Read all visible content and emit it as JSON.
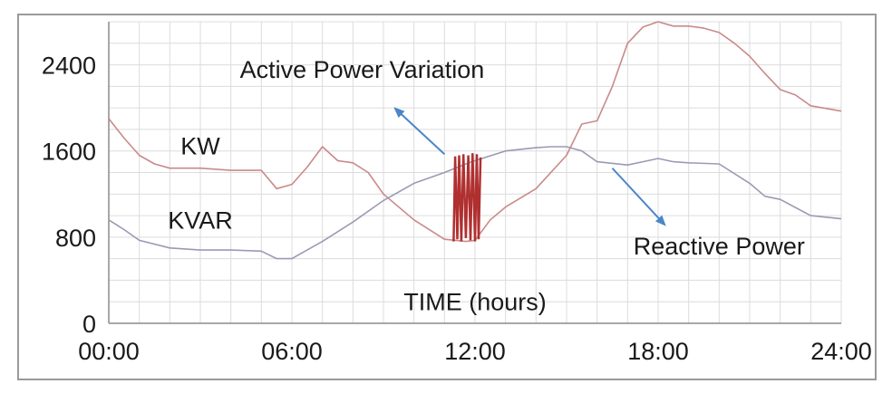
{
  "chart_data": {
    "type": "line",
    "xlabel": "TIME (hours)",
    "ylabel": "",
    "xlim": [
      0,
      24
    ],
    "ylim": [
      0,
      2800
    ],
    "grid": true,
    "x_ticks": [
      "00:00",
      "06:00",
      "12:00",
      "18:00",
      "24:00"
    ],
    "y_ticks": [
      "0",
      "800",
      "1600",
      "2400"
    ],
    "series": [
      {
        "name": "KW",
        "color": "#c98a8a",
        "x": [
          0,
          0.5,
          1,
          1.5,
          2,
          3,
          4,
          5,
          5.5,
          6,
          6.5,
          7,
          7.5,
          8,
          8.5,
          9,
          10,
          11,
          11.7,
          12,
          12.5,
          13,
          14,
          15,
          15.5,
          16,
          16.5,
          17,
          17.5,
          18,
          18.5,
          19,
          19.5,
          20,
          20.5,
          21,
          21.5,
          22,
          22.5,
          23,
          24
        ],
        "y": [
          1900,
          1720,
          1560,
          1480,
          1440,
          1440,
          1420,
          1420,
          1250,
          1290,
          1450,
          1640,
          1510,
          1490,
          1400,
          1200,
          960,
          780,
          760,
          770,
          960,
          1080,
          1250,
          1560,
          1850,
          1880,
          2200,
          2600,
          2750,
          2800,
          2760,
          2760,
          2740,
          2700,
          2600,
          2480,
          2320,
          2170,
          2120,
          2020,
          1970
        ]
      },
      {
        "name": "KVAR",
        "color": "#9a9ab5",
        "x": [
          0,
          0.5,
          1,
          2,
          3,
          4,
          5,
          5.5,
          6,
          6.5,
          7,
          8,
          9,
          10,
          11,
          11.7,
          12,
          13,
          14,
          14.5,
          15,
          15.5,
          16,
          17,
          17.5,
          18,
          18.5,
          19,
          20,
          21,
          21.5,
          22,
          23,
          24
        ],
        "y": [
          960,
          870,
          770,
          700,
          680,
          680,
          670,
          600,
          600,
          680,
          760,
          940,
          1140,
          1300,
          1400,
          1480,
          1510,
          1600,
          1630,
          1640,
          1640,
          1600,
          1500,
          1470,
          1500,
          1530,
          1500,
          1490,
          1480,
          1300,
          1180,
          1150,
          1000,
          970
        ]
      }
    ],
    "overlay": {
      "color": "#b03030",
      "x": [
        11.3,
        11.35,
        11.42,
        11.48,
        11.55,
        11.62,
        11.7,
        11.78,
        11.85,
        11.92,
        12.0,
        12.06,
        12.12,
        12.18
      ],
      "y": [
        760,
        1550,
        780,
        1560,
        760,
        1570,
        790,
        1560,
        770,
        1580,
        760,
        1570,
        780,
        1540
      ]
    },
    "annotations": [
      {
        "text": "Active Power Variation",
        "x": 8.3,
        "y": 2280
      },
      {
        "text": "KW",
        "x": 3.0,
        "y": 1570
      },
      {
        "text": "KVAR",
        "x": 3.0,
        "y": 880
      },
      {
        "text": "Reactive Power",
        "x": 20.0,
        "y": 640
      },
      {
        "text": "TIME (hours)",
        "x": 12.0,
        "y": 120
      }
    ],
    "arrows": [
      {
        "name": "arrow-active-power",
        "from": [
          11.0,
          1570
        ],
        "to": [
          9.4,
          1990
        ]
      },
      {
        "name": "arrow-reactive-power",
        "from": [
          16.5,
          1440
        ],
        "to": [
          18.2,
          920
        ]
      }
    ]
  }
}
